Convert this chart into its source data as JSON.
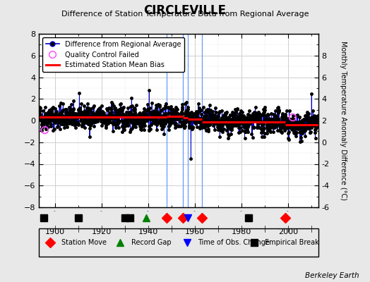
{
  "title": "CIRCLEVILLE",
  "subtitle": "Difference of Station Temperature Data from Regional Average",
  "ylabel": "Monthly Temperature Anomaly Difference (°C)",
  "ylim": [
    -8,
    8
  ],
  "xlim": [
    1893,
    2013
  ],
  "background_color": "#e8e8e8",
  "plot_bg_color": "#ffffff",
  "grid_color": "#c8c8c8",
  "seed": 42,
  "station_moves": [
    1948,
    1955,
    1963,
    1999
  ],
  "record_gaps": [
    1939
  ],
  "time_obs_changes": [
    1957
  ],
  "empirical_breaks": [
    1895,
    1910,
    1930,
    1932,
    1983
  ],
  "vertical_lines": [
    1948,
    1955,
    1957,
    1963
  ],
  "segment_biases": [
    {
      "start": 1893,
      "end": 1948,
      "bias": 0.3
    },
    {
      "start": 1948,
      "end": 1955,
      "bias": 0.42
    },
    {
      "start": 1955,
      "end": 1957,
      "bias": 0.25
    },
    {
      "start": 1957,
      "end": 1963,
      "bias": 0.1
    },
    {
      "start": 1963,
      "end": 1999,
      "bias": -0.15
    },
    {
      "start": 1999,
      "end": 2013,
      "bias": -0.4
    }
  ],
  "qc_failed": [
    {
      "year": 1895.3,
      "value": -0.85
    },
    {
      "year": 2002.0,
      "value": 0.32
    }
  ],
  "spike_at": [
    {
      "year": 1940.4,
      "value": 2.8
    },
    {
      "year": 1958.3,
      "value": -3.5
    },
    {
      "year": 2010.2,
      "value": 2.5
    }
  ],
  "data_color": "#0000cc",
  "bias_color": "#ff0000",
  "qc_color": "#ff44ff",
  "vline_color": "#6699ff",
  "marker_color": "#000000",
  "bias_linewidth": 2.2,
  "data_linewidth": 0.7,
  "marker_size": 2.5
}
